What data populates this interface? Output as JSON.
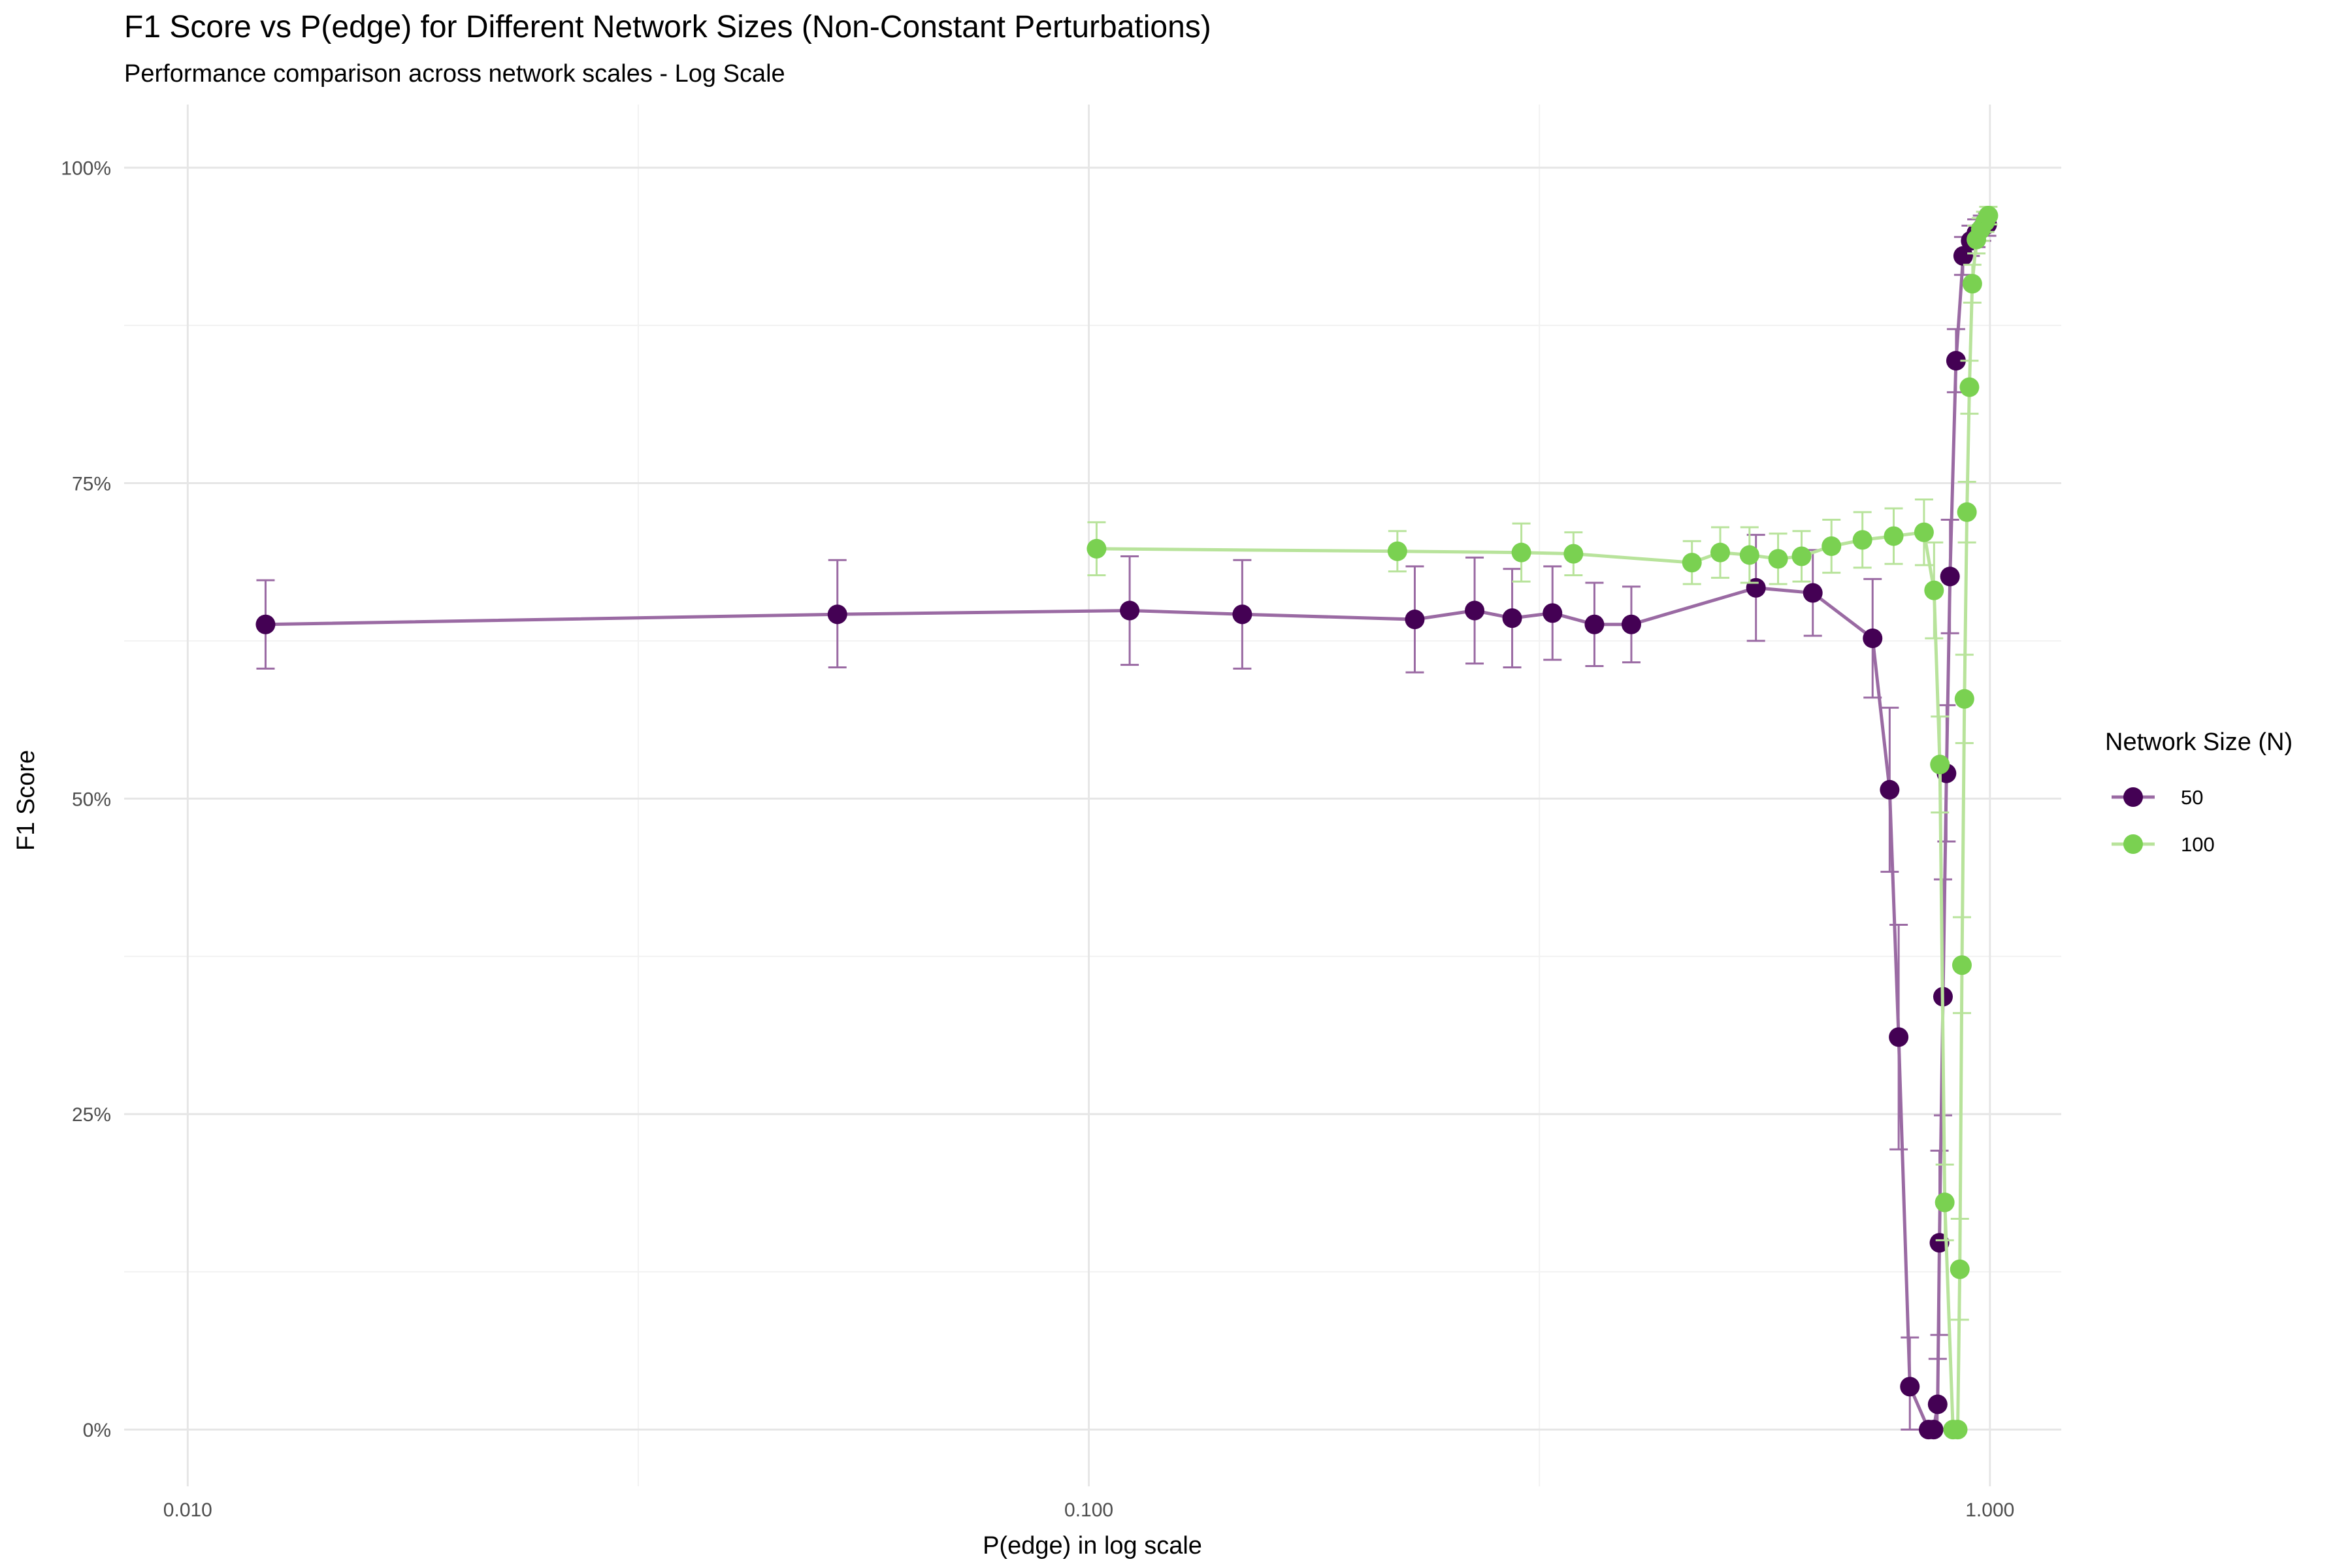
{
  "chart_data": {
    "type": "line",
    "title": "F1 Score vs P(edge) for Different Network Sizes (Non-Constant Perturbations)",
    "subtitle": "Performance comparison across network scales - Log Scale",
    "xlabel": "P(edge) in log scale",
    "ylabel": "F1 Score",
    "x_scale": "log10",
    "xlim": [
      0.0085,
      1.2
    ],
    "ylim": [
      -0.045,
      1.05
    ],
    "x_ticks": [
      0.01,
      0.1,
      1.0
    ],
    "x_tick_labels": [
      "0.010",
      "0.100",
      "1.000"
    ],
    "y_ticks": [
      0,
      0.25,
      0.5,
      0.75,
      1.0
    ],
    "y_tick_labels": [
      "0%",
      "25%",
      "50%",
      "75%",
      "100%"
    ],
    "grid": true,
    "legend": {
      "title": "Network Size (N)",
      "position": "right"
    },
    "series": [
      {
        "name": "50",
        "color": "#440154",
        "line_color": "#9a6aa3",
        "points": [
          {
            "x": 0.0122,
            "y": 0.638,
            "lo": 0.603,
            "hi": 0.673
          },
          {
            "x": 0.0526,
            "y": 0.646,
            "lo": 0.604,
            "hi": 0.689
          },
          {
            "x": 0.111,
            "y": 0.649,
            "lo": 0.606,
            "hi": 0.692
          },
          {
            "x": 0.148,
            "y": 0.646,
            "lo": 0.603,
            "hi": 0.689
          },
          {
            "x": 0.23,
            "y": 0.642,
            "lo": 0.6,
            "hi": 0.684
          },
          {
            "x": 0.268,
            "y": 0.649,
            "lo": 0.607,
            "hi": 0.691
          },
          {
            "x": 0.295,
            "y": 0.643,
            "lo": 0.604,
            "hi": 0.682
          },
          {
            "x": 0.327,
            "y": 0.647,
            "lo": 0.61,
            "hi": 0.684
          },
          {
            "x": 0.364,
            "y": 0.638,
            "lo": 0.605,
            "hi": 0.671
          },
          {
            "x": 0.4,
            "y": 0.638,
            "lo": 0.608,
            "hi": 0.668
          },
          {
            "x": 0.55,
            "y": 0.667,
            "lo": 0.625,
            "hi": 0.709
          },
          {
            "x": 0.636,
            "y": 0.663,
            "lo": 0.629,
            "hi": 0.697
          },
          {
            "x": 0.741,
            "y": 0.627,
            "lo": 0.58,
            "hi": 0.674
          },
          {
            "x": 0.774,
            "y": 0.507,
            "lo": 0.442,
            "hi": 0.572
          },
          {
            "x": 0.792,
            "y": 0.311,
            "lo": 0.222,
            "hi": 0.4
          },
          {
            "x": 0.815,
            "y": 0.034,
            "lo": 0.0,
            "hi": 0.073
          },
          {
            "x": 0.855,
            "y": 0.0,
            "lo": 0.0,
            "hi": 0.0
          },
          {
            "x": 0.866,
            "y": 0.0,
            "lo": 0.0,
            "hi": 0.0
          },
          {
            "x": 0.875,
            "y": 0.02,
            "lo": 0.0,
            "hi": 0.056
          },
          {
            "x": 0.879,
            "y": 0.148,
            "lo": 0.075,
            "hi": 0.221
          },
          {
            "x": 0.887,
            "y": 0.343,
            "lo": 0.249,
            "hi": 0.436
          },
          {
            "x": 0.895,
            "y": 0.52,
            "lo": 0.466,
            "hi": 0.574
          },
          {
            "x": 0.903,
            "y": 0.676,
            "lo": 0.631,
            "hi": 0.721
          },
          {
            "x": 0.917,
            "y": 0.847,
            "lo": 0.822,
            "hi": 0.872
          },
          {
            "x": 0.934,
            "y": 0.93,
            "lo": 0.915,
            "hi": 0.945
          },
          {
            "x": 0.952,
            "y": 0.942,
            "lo": 0.93,
            "hi": 0.954
          },
          {
            "x": 0.966,
            "y": 0.948,
            "lo": 0.937,
            "hi": 0.959
          },
          {
            "x": 0.98,
            "y": 0.952,
            "lo": 0.942,
            "hi": 0.962
          },
          {
            "x": 0.993,
            "y": 0.955,
            "lo": 0.946,
            "hi": 0.964
          }
        ]
      },
      {
        "name": "100",
        "color": "#7ad151",
        "line_color": "#b8e39b",
        "points": [
          {
            "x": 0.102,
            "y": 0.698,
            "lo": 0.677,
            "hi": 0.719
          },
          {
            "x": 0.22,
            "y": 0.696,
            "lo": 0.68,
            "hi": 0.712
          },
          {
            "x": 0.302,
            "y": 0.695,
            "lo": 0.672,
            "hi": 0.718
          },
          {
            "x": 0.345,
            "y": 0.694,
            "lo": 0.677,
            "hi": 0.711
          },
          {
            "x": 0.467,
            "y": 0.687,
            "lo": 0.67,
            "hi": 0.704
          },
          {
            "x": 0.502,
            "y": 0.695,
            "lo": 0.675,
            "hi": 0.715
          },
          {
            "x": 0.541,
            "y": 0.693,
            "lo": 0.671,
            "hi": 0.715
          },
          {
            "x": 0.582,
            "y": 0.69,
            "lo": 0.67,
            "hi": 0.71
          },
          {
            "x": 0.618,
            "y": 0.692,
            "lo": 0.672,
            "hi": 0.712
          },
          {
            "x": 0.667,
            "y": 0.7,
            "lo": 0.679,
            "hi": 0.721
          },
          {
            "x": 0.722,
            "y": 0.705,
            "lo": 0.683,
            "hi": 0.727
          },
          {
            "x": 0.782,
            "y": 0.708,
            "lo": 0.686,
            "hi": 0.73
          },
          {
            "x": 0.845,
            "y": 0.711,
            "lo": 0.685,
            "hi": 0.737
          },
          {
            "x": 0.867,
            "y": 0.665,
            "lo": 0.627,
            "hi": 0.703
          },
          {
            "x": 0.88,
            "y": 0.527,
            "lo": 0.489,
            "hi": 0.565
          },
          {
            "x": 0.891,
            "y": 0.18,
            "lo": 0.15,
            "hi": 0.21
          },
          {
            "x": 0.91,
            "y": 0.0,
            "lo": 0.0,
            "hi": 0.0
          },
          {
            "x": 0.921,
            "y": 0.0,
            "lo": 0.0,
            "hi": 0.0
          },
          {
            "x": 0.926,
            "y": 0.127,
            "lo": 0.087,
            "hi": 0.167
          },
          {
            "x": 0.931,
            "y": 0.368,
            "lo": 0.33,
            "hi": 0.406
          },
          {
            "x": 0.937,
            "y": 0.579,
            "lo": 0.544,
            "hi": 0.614
          },
          {
            "x": 0.943,
            "y": 0.727,
            "lo": 0.703,
            "hi": 0.751
          },
          {
            "x": 0.949,
            "y": 0.826,
            "lo": 0.805,
            "hi": 0.847
          },
          {
            "x": 0.956,
            "y": 0.908,
            "lo": 0.893,
            "hi": 0.923
          },
          {
            "x": 0.966,
            "y": 0.943,
            "lo": 0.932,
            "hi": 0.954
          },
          {
            "x": 0.977,
            "y": 0.951,
            "lo": 0.942,
            "hi": 0.96
          },
          {
            "x": 0.988,
            "y": 0.957,
            "lo": 0.949,
            "hi": 0.965
          },
          {
            "x": 0.996,
            "y": 0.962,
            "lo": 0.955,
            "hi": 0.969
          }
        ]
      }
    ]
  }
}
